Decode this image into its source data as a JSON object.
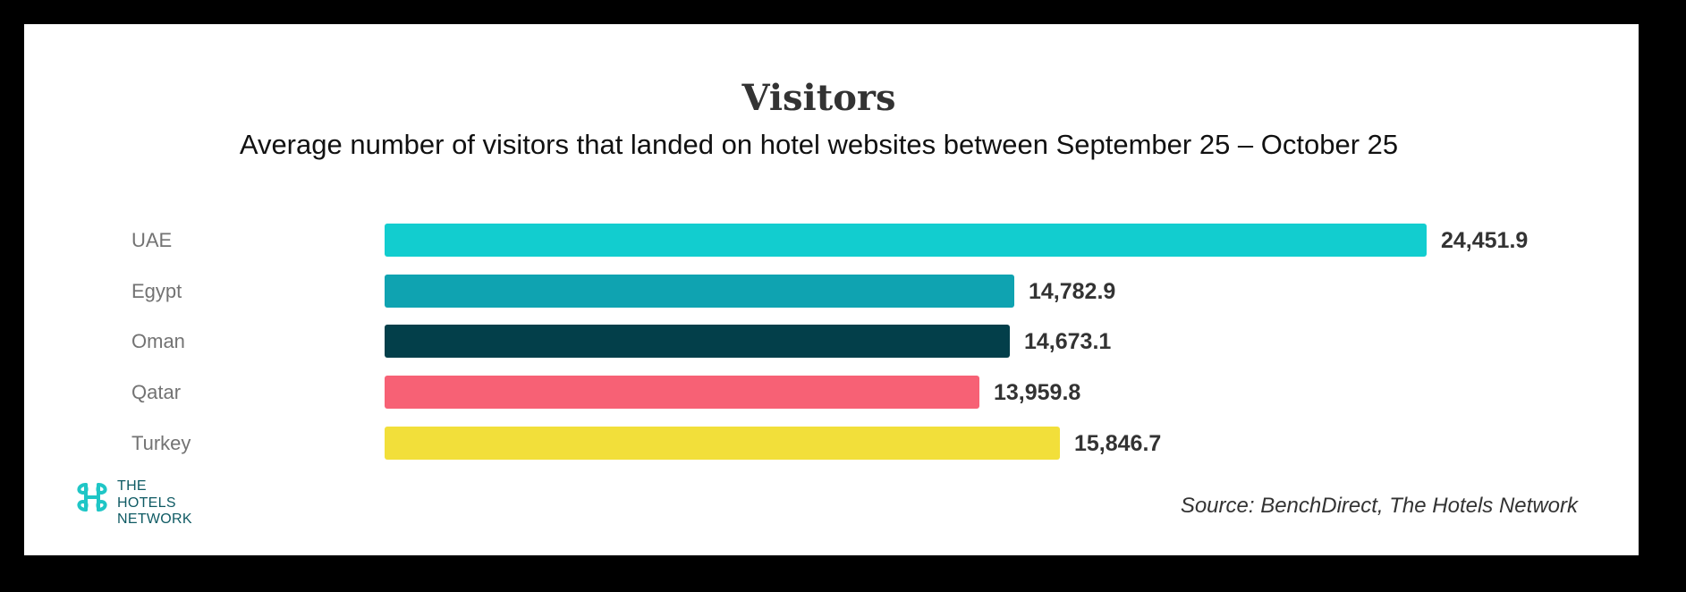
{
  "chart_data": {
    "type": "bar",
    "orientation": "horizontal",
    "title": "Visitors",
    "subtitle": "Average number of visitors that landed on hotel websites between September 25 – October 25",
    "categories": [
      "UAE",
      "Egypt",
      "Oman",
      "Qatar",
      "Turkey"
    ],
    "values": [
      24451.9,
      14782.9,
      14673.1,
      13959.8,
      15846.7
    ],
    "value_labels": [
      "24,451.9",
      "14,782.9",
      "14,673.1",
      "13,959.8",
      "15,846.7"
    ],
    "colors": [
      "#12CDCF",
      "#0FA3B1",
      "#033F4A",
      "#F76175",
      "#F2DF3A"
    ],
    "xlabel": "",
    "ylabel": "",
    "grid": false,
    "legend": false,
    "source": "Source: BenchDirect, The Hotels Network"
  },
  "header": {
    "title": "Visitors",
    "subtitle": "Average number of visitors that landed on hotel websites between September 25 – October 25"
  },
  "rows": [
    {
      "label": "UAE",
      "value": 24451.9,
      "value_label": "24,451.9",
      "color": "#12CDCF"
    },
    {
      "label": "Egypt",
      "value": 14782.9,
      "value_label": "14,782.9",
      "color": "#0FA3B1"
    },
    {
      "label": "Oman",
      "value": 14673.1,
      "value_label": "14,673.1",
      "color": "#033F4A"
    },
    {
      "label": "Qatar",
      "value": 13959.8,
      "value_label": "13,959.8",
      "color": "#F76175"
    },
    {
      "label": "Turkey",
      "value": 15846.7,
      "value_label": "15,846.7",
      "color": "#F2DF3A"
    }
  ],
  "footer": {
    "logo": {
      "icon": "hotels-network-logo-icon",
      "line1": "THE",
      "line2": "HOTELS",
      "line3": "NETWORK",
      "mark_color": "#1FC6C6",
      "text_color": "#0E5A63"
    },
    "source": "Source: BenchDirect, The Hotels Network"
  }
}
